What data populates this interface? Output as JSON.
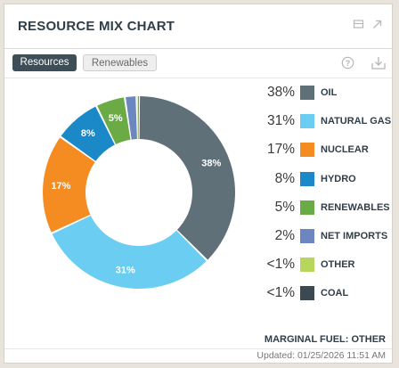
{
  "header": {
    "title": "RESOURCE MIX CHART"
  },
  "tabs": [
    {
      "label": "Resources",
      "active": true
    },
    {
      "label": "Renewables",
      "active": false
    }
  ],
  "icons": {
    "header": [
      "minimize-icon",
      "expand-icon"
    ],
    "toolbar": [
      "help-icon",
      "download-icon"
    ]
  },
  "chart_data": {
    "type": "pie",
    "donut": true,
    "series": [
      {
        "name": "OIL",
        "value": 38,
        "label": "38%",
        "display": "38%",
        "color": "#5f7079"
      },
      {
        "name": "NATURAL GAS",
        "value": 31,
        "label": "31%",
        "display": "31%",
        "color": "#6ccdf2"
      },
      {
        "name": "NUCLEAR",
        "value": 17,
        "label": "17%",
        "display": "17%",
        "color": "#f58c22"
      },
      {
        "name": "HYDRO",
        "value": 8,
        "label": "8%",
        "display": "8%",
        "color": "#1b88c8"
      },
      {
        "name": "RENEWABLES",
        "value": 5,
        "label": "5%",
        "display": "5%",
        "color": "#6aab45"
      },
      {
        "name": "NET IMPORTS",
        "value": 2,
        "label": "",
        "display": "2%",
        "color": "#6c86c0"
      },
      {
        "name": "OTHER",
        "value": 0.2,
        "label": "",
        "display": "<1%",
        "color": "#b7d65c"
      },
      {
        "name": "COAL",
        "value": 0.2,
        "label": "",
        "display": "<1%",
        "color": "#3b4a52"
      }
    ],
    "legend_position": "right"
  },
  "marginal_fuel": "MARGINAL FUEL: OTHER",
  "updated": "Updated: 01/25/2026 11:51 AM"
}
